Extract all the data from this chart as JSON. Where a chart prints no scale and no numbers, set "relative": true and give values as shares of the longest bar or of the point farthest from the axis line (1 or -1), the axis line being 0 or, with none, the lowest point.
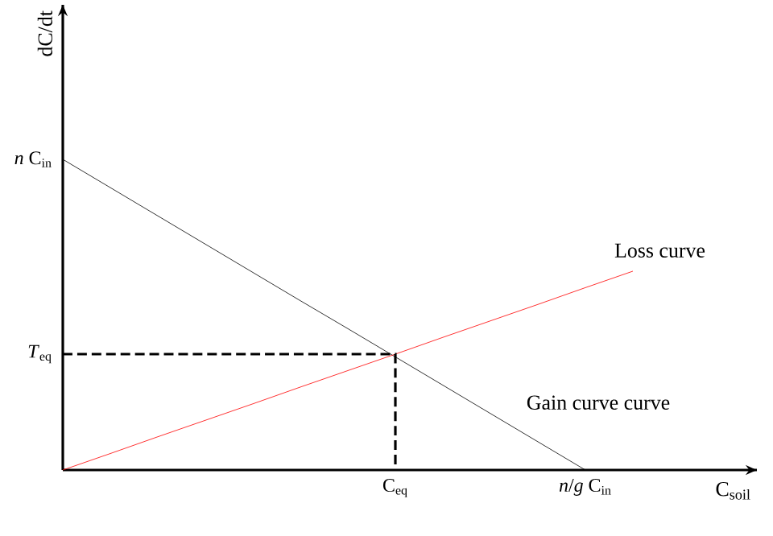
{
  "chart_data": {
    "type": "line",
    "xlabel": "C$_{soil}$",
    "ylabel": "dC/dt",
    "relative": true,
    "marker": "none",
    "categories": [
      null,
      null,
      null,
      null,
      null,
      null,
      null,
      "C$_{eq}$",
      null,
      null,
      null,
      "*n*/*g* C$_{in}$",
      null
    ],
    "series": [
      {
        "name": "Gain curve curve",
        "color": "#000000",
        "values": [
          1,
          0.909,
          0.818,
          0.727,
          0.636,
          0.545,
          0.455,
          0.364,
          0.273,
          0.182,
          0.091,
          0,
          null
        ]
      },
      {
        "name": "Loss curve",
        "color": "#ff0000",
        "values": [
          0,
          0.053,
          0.107,
          0.16,
          0.213,
          0.267,
          0.32,
          0.373,
          0.427,
          0.48,
          0.533,
          0.587,
          0.64
        ]
      }
    ],
    "annotations": [
      "*n* C$_{in}$",
      "*T*$_{eq}$"
    ]
  }
}
